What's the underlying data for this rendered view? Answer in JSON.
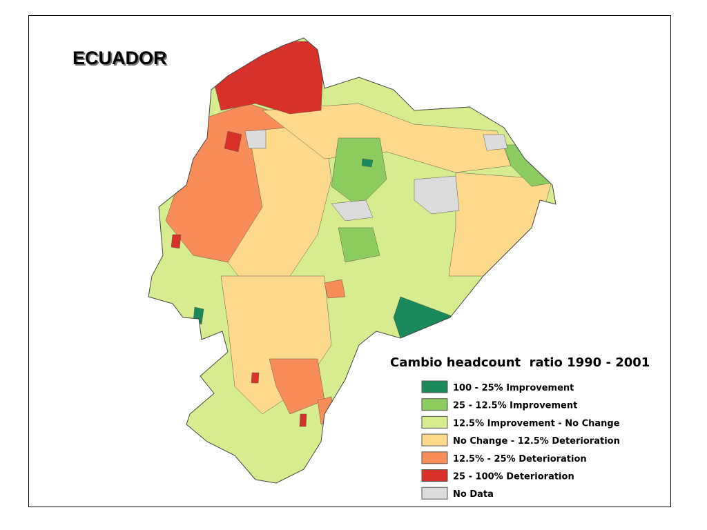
{
  "title": "ECUADOR",
  "legend": {
    "title": "Cambio headcount  ratio 1990 - 2001",
    "items": [
      {
        "label": "100 - 25% Improvement",
        "color": "#1b8a5a"
      },
      {
        "label": "25 - 12.5% Improvement",
        "color": "#8ccc5e"
      },
      {
        "label": "12.5% Improvement - No Change",
        "color": "#d6ec8e"
      },
      {
        "label": "No Change - 12.5% Deterioration",
        "color": "#fdd98c"
      },
      {
        "label": "12.5% - 25% Deterioration",
        "color": "#f88d59"
      },
      {
        "label": "25 - 100% Deterioration",
        "color": "#d7312a"
      },
      {
        "label": "No Data",
        "color": "#dcdcdc"
      }
    ]
  }
}
